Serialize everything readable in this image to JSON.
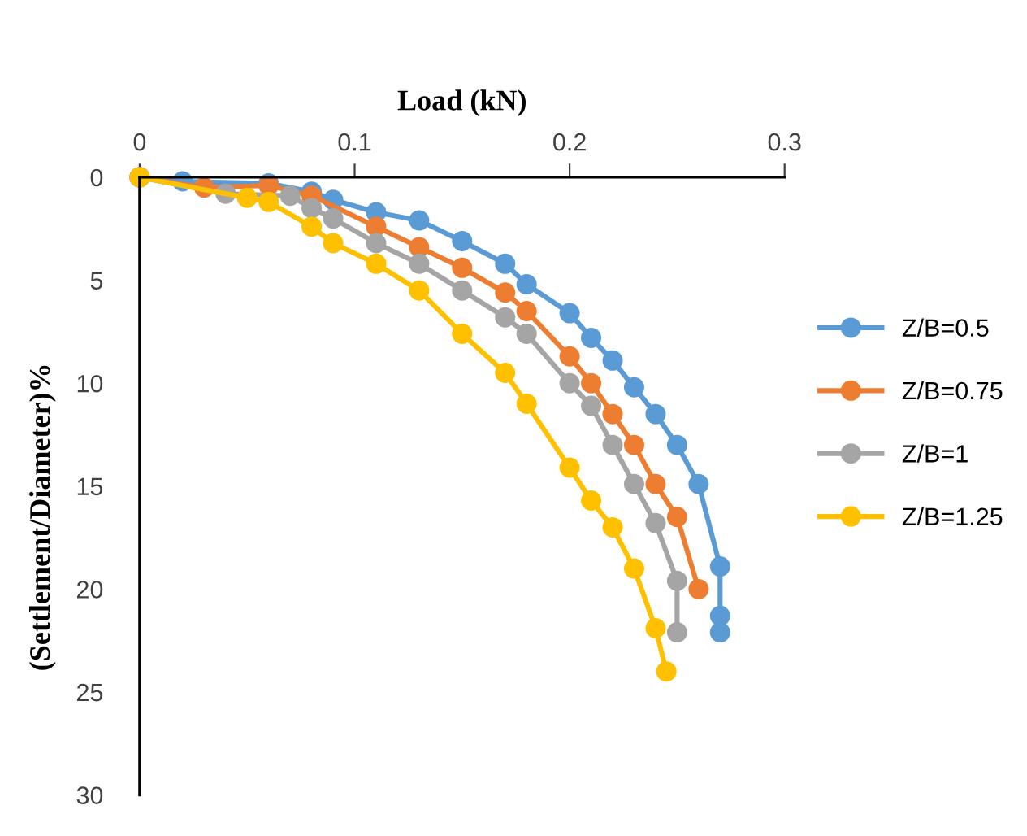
{
  "chart_data": {
    "type": "line",
    "xlabel": "Load (kN)",
    "ylabel": "(Settlement/Diameter)%",
    "xlim": [
      0,
      0.3
    ],
    "xticks": [
      0,
      0.1,
      0.2,
      0.3
    ],
    "ylim": [
      30,
      0
    ],
    "yticks": [
      0,
      5,
      10,
      15,
      20,
      25,
      30
    ],
    "grid": false,
    "legend": "right",
    "marker": "circle",
    "line_style": "solid",
    "series": [
      {
        "name": "Z/B=0.5",
        "color": "#5b9bd5",
        "x": [
          0,
          0.02,
          0.06,
          0.08,
          0.09,
          0.11,
          0.13,
          0.15,
          0.17,
          0.18,
          0.2,
          0.21,
          0.22,
          0.23,
          0.24,
          0.25,
          0.26,
          0.27,
          0.27,
          0.27
        ],
        "values": [
          0,
          0.2,
          0.3,
          0.7,
          1.1,
          1.7,
          2.1,
          3.1,
          4.2,
          5.2,
          6.6,
          7.8,
          8.9,
          10.2,
          11.5,
          13,
          14.9,
          18.9,
          21.3,
          22.1
        ]
      },
      {
        "name": "Z/B=0.75",
        "color": "#ed7d31",
        "x": [
          0,
          0.03,
          0.06,
          0.08,
          0.11,
          0.13,
          0.15,
          0.17,
          0.18,
          0.2,
          0.21,
          0.22,
          0.23,
          0.24,
          0.25,
          0.26
        ],
        "values": [
          0,
          0.5,
          0.4,
          0.9,
          2.4,
          3.4,
          4.4,
          5.6,
          6.5,
          8.7,
          10,
          11.5,
          13,
          14.9,
          16.5,
          20
        ]
      },
      {
        "name": "Z/B=1",
        "color": "#a5a5a5",
        "x": [
          0,
          0.04,
          0.07,
          0.08,
          0.09,
          0.11,
          0.13,
          0.15,
          0.17,
          0.18,
          0.2,
          0.21,
          0.22,
          0.23,
          0.24,
          0.25,
          0.25
        ],
        "values": [
          0,
          0.8,
          0.9,
          1.5,
          2,
          3.2,
          4.2,
          5.5,
          6.8,
          7.6,
          10,
          11.1,
          13,
          14.9,
          16.8,
          19.6,
          22.1
        ]
      },
      {
        "name": "Z/B=1.25",
        "color": "#ffc000",
        "x": [
          0,
          0.05,
          0.06,
          0.08,
          0.09,
          0.11,
          0.13,
          0.15,
          0.17,
          0.18,
          0.2,
          0.21,
          0.22,
          0.23,
          0.24,
          0.245
        ],
        "values": [
          0,
          1,
          1.2,
          2.4,
          3.2,
          4.2,
          5.5,
          7.6,
          9.5,
          11,
          14.1,
          15.7,
          17,
          19,
          21.9,
          24
        ]
      }
    ]
  }
}
